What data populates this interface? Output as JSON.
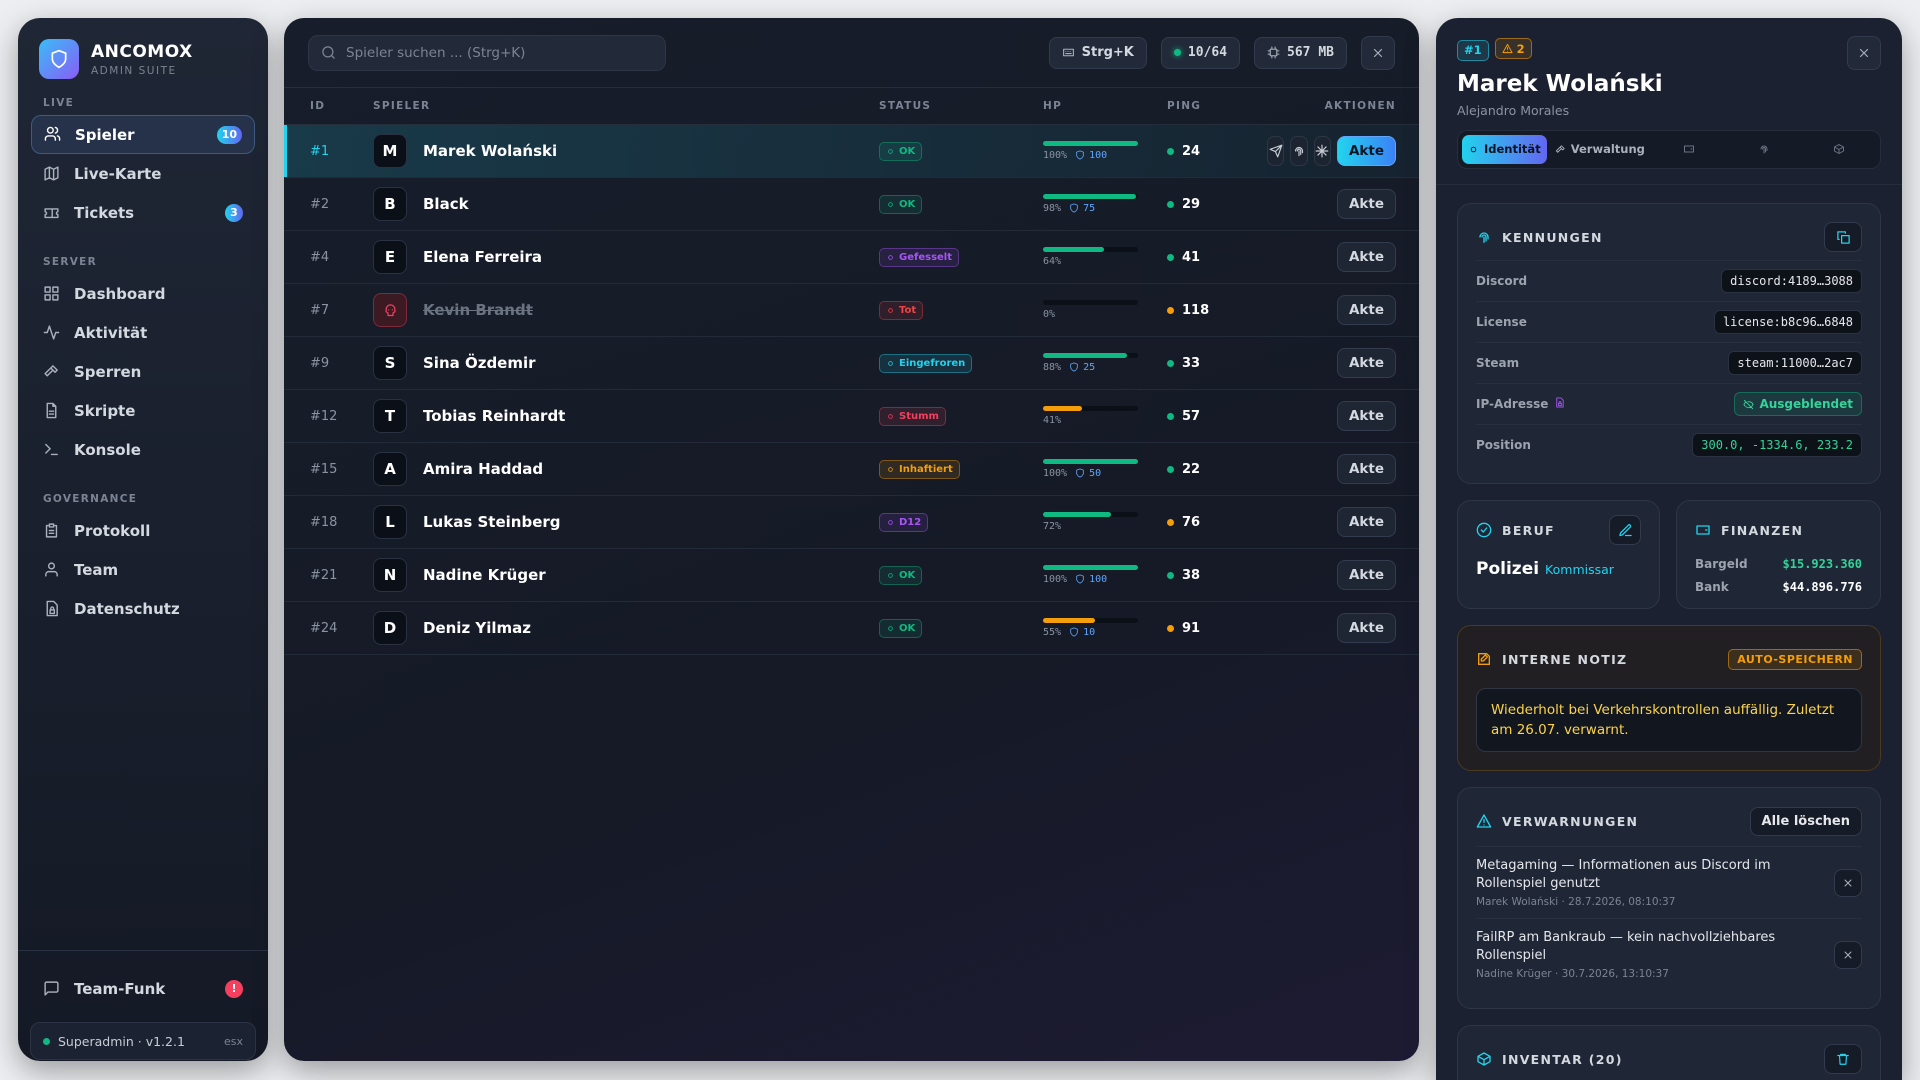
{
  "sidebar": {
    "brand": "ANCOMOX",
    "brand_subtitle": "ADMIN SUITE",
    "sections": [
      {
        "title": "LIVE",
        "items": [
          {
            "label": "Spieler",
            "badge": "10",
            "active": true
          },
          {
            "label": "Live-Karte"
          },
          {
            "label": "Tickets",
            "badge": "3"
          }
        ]
      },
      {
        "title": "SERVER",
        "items": [
          {
            "label": "Dashboard"
          },
          {
            "label": "Aktivität"
          },
          {
            "label": "Sperren"
          },
          {
            "label": "Skripte"
          },
          {
            "label": "Konsole"
          }
        ]
      },
      {
        "title": "GOVERNANCE",
        "items": [
          {
            "label": "Protokoll"
          },
          {
            "label": "Team"
          },
          {
            "label": "Datenschutz"
          }
        ]
      }
    ],
    "footer": {
      "label": "Team-Funk",
      "alert": "!",
      "status": "Superadmin · v1.2.1",
      "tag": "esx"
    }
  },
  "toolbar": {
    "search_placeholder": "Spieler suchen ... (Strg+K)",
    "shortcut": "Strg+K",
    "players": "10/64",
    "memory": "567 MB"
  },
  "table": {
    "columns": [
      "ID",
      "SPIELER",
      "STATUS",
      "HP",
      "PING",
      "AKTIONEN"
    ],
    "rows": [
      {
        "id": "#1",
        "initial": "M",
        "name": "Marek Wolański",
        "status": "OK",
        "status_color": "#10b981",
        "hp": {
          "value": 100,
          "label": "100%"
        },
        "hp_color": "#10b981",
        "armor": 100,
        "ping": 24,
        "ping_color": "#10b981",
        "action": "Akte",
        "selected": true
      },
      {
        "id": "#2",
        "initial": "B",
        "name": "Black",
        "status": "OK",
        "status_color": "#10b981",
        "hp": {
          "value": 98,
          "label": "98%"
        },
        "hp_color": "#10b981",
        "armor": 75,
        "ping": 29,
        "ping_color": "#10b981",
        "action": "Akte"
      },
      {
        "id": "#4",
        "initial": "E",
        "name": "Elena Ferreira",
        "status": "Gefesselt",
        "status_color": "#a855f7",
        "hp": {
          "value": 64,
          "label": "64%"
        },
        "hp_color": "#10b981",
        "armor": null,
        "ping": 41,
        "ping_color": "#10b981",
        "action": "Akte"
      },
      {
        "id": "#7",
        "name": "Kevin Brandt",
        "dead": true,
        "status": "Tot",
        "status_color": "#ef4444",
        "hp": {
          "value": 0,
          "label": "0%"
        },
        "hp_color": "#ef4444",
        "armor": null,
        "ping": 118,
        "ping_color": "#f59e0b",
        "action": "Akte"
      },
      {
        "id": "#9",
        "initial": "S",
        "name": "Sina Özdemir",
        "status": "Eingefroren",
        "status_color": "#22d3ee",
        "hp": {
          "value": 88,
          "label": "88%"
        },
        "hp_color": "#10b981",
        "armor": 25,
        "ping": 33,
        "ping_color": "#10b981",
        "action": "Akte"
      },
      {
        "id": "#12",
        "initial": "T",
        "name": "Tobias Reinhardt",
        "status": "Stumm",
        "status_color": "#f43f5e",
        "hp": {
          "value": 41,
          "label": "41%"
        },
        "hp_color": "#f59e0b",
        "armor": null,
        "ping": 57,
        "ping_color": "#10b981",
        "action": "Akte"
      },
      {
        "id": "#15",
        "initial": "A",
        "name": "Amira Haddad",
        "status": "Inhaftiert",
        "status_color": "#f59e0b",
        "hp": {
          "value": 100,
          "label": "100%"
        },
        "hp_color": "#10b981",
        "armor": 50,
        "ping": 22,
        "ping_color": "#10b981",
        "action": "Akte"
      },
      {
        "id": "#18",
        "initial": "L",
        "name": "Lukas Steinberg",
        "status": "D12",
        "status_color": "#a855f7",
        "hp": {
          "value": 72,
          "label": "72%"
        },
        "hp_color": "#10b981",
        "armor": null,
        "ping": 76,
        "ping_color": "#f59e0b",
        "action": "Akte"
      },
      {
        "id": "#21",
        "initial": "N",
        "name": "Nadine Krüger",
        "status": "OK",
        "status_color": "#10b981",
        "hp": {
          "value": 100,
          "label": "100%"
        },
        "hp_color": "#10b981",
        "armor": 100,
        "ping": 38,
        "ping_color": "#10b981",
        "action": "Akte"
      },
      {
        "id": "#24",
        "initial": "D",
        "name": "Deniz Yilmaz",
        "status": "OK",
        "status_color": "#10b981",
        "hp": {
          "value": 55,
          "label": "55%"
        },
        "hp_color": "#f59e0b",
        "armor": 10,
        "ping": 91,
        "ping_color": "#f59e0b",
        "action": "Akte"
      }
    ]
  },
  "detail": {
    "badges": [
      "#1",
      "2"
    ],
    "name": "Marek Wolański",
    "alias": "Alejandro Morales",
    "tabs": [
      "Identität",
      "Verwaltung"
    ],
    "identifiers": {
      "title": "KENNUNGEN",
      "rows": [
        {
          "label": "Discord",
          "value": "discord:4189…3088"
        },
        {
          "label": "License",
          "value": "license:b8c96…6848"
        },
        {
          "label": "Steam",
          "value": "steam:11000…2ac7"
        },
        {
          "label": "IP-Adresse",
          "value": "Ausgeblendet",
          "hidden": true
        },
        {
          "label": "Position",
          "value": "300.0, -1334.6, 233.2",
          "accent": true
        }
      ]
    },
    "job": {
      "title": "BERUF",
      "name": "Polizei",
      "rank": "Kommissar"
    },
    "finances": {
      "title": "FINANZEN",
      "rows": [
        {
          "label": "Bargeld",
          "value": "$15.923.360",
          "color": "#34d399"
        },
        {
          "label": "Bank",
          "value": "$44.896.776",
          "color": "#ffffff"
        }
      ]
    },
    "note": {
      "title": "INTERNE NOTIZ",
      "badge": "AUTO-SPEICHERN",
      "text": "Wiederholt bei Verkehrskontrollen auffällig. Zuletzt am 26.07. verwarnt."
    },
    "warnings": {
      "title": "VERWARNUNGEN",
      "clear": "Alle löschen",
      "items": [
        {
          "text": "Metagaming — Informationen aus Discord im Rollenspiel genutzt",
          "meta": "Marek Wolański · 28.7.2026, 08:10:37"
        },
        {
          "text": "FailRP am Bankraub — kein nachvollziehbares Rollenspiel",
          "meta": "Nadine Krüger · 30.7.2026, 13:10:37"
        }
      ]
    },
    "inventory": {
      "title": "INVENTAR (20)"
    }
  }
}
